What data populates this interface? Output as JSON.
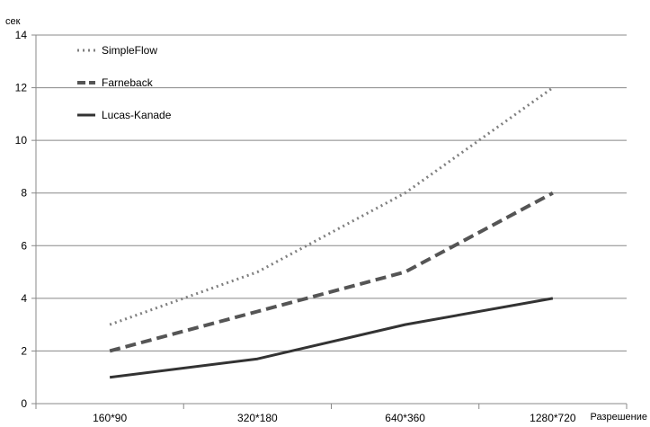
{
  "chart_data": {
    "type": "line",
    "title": "",
    "xlabel": "Разрешение",
    "ylabel": "сек",
    "categories": [
      "160*90",
      "320*180",
      "640*360",
      "1280*720"
    ],
    "ylim": [
      0,
      14
    ],
    "yticks": [
      0,
      2,
      4,
      6,
      8,
      10,
      12,
      14
    ],
    "grid": true,
    "legend_position": "top-left",
    "series": [
      {
        "name": "SimpleFlow",
        "values": [
          3,
          5,
          8,
          12
        ],
        "color": "#808080",
        "style": "dotted"
      },
      {
        "name": "Farneback",
        "values": [
          2,
          3.5,
          5,
          8
        ],
        "color": "#555555",
        "style": "dashed"
      },
      {
        "name": "Lucas-Kanade",
        "values": [
          1,
          1.7,
          3,
          4
        ],
        "color": "#333333",
        "style": "solid"
      }
    ]
  }
}
